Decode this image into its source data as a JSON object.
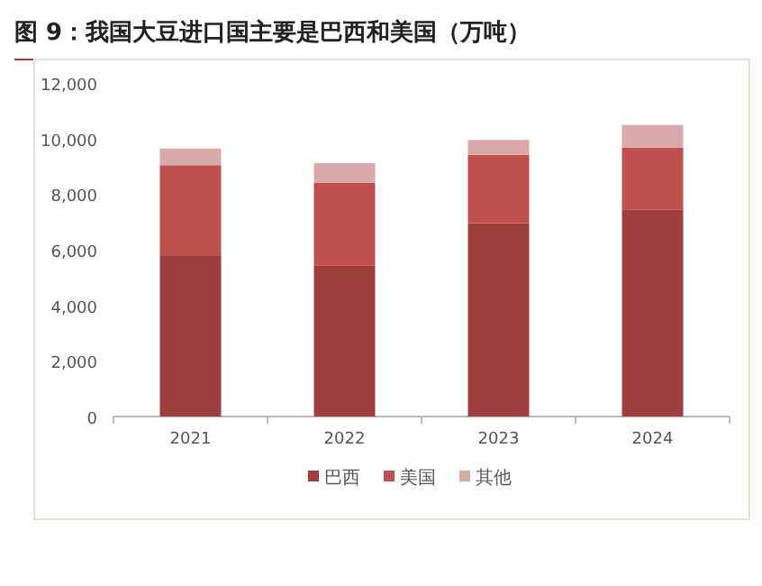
{
  "chart_data": {
    "type": "bar",
    "stacked": true,
    "title": "图 9：我国大豆进口国主要是巴西和美国（万吨）",
    "categories": [
      "2021",
      "2022",
      "2023",
      "2024"
    ],
    "series": [
      {
        "name": "巴西",
        "color": "#9e3f3f",
        "values": [
          5800,
          5420,
          6950,
          7450
        ]
      },
      {
        "name": "美国",
        "color": "#c0504d",
        "values": [
          3240,
          2980,
          2460,
          2220
        ]
      },
      {
        "name": "其他",
        "color": "#d9a9a9",
        "values": [
          600,
          710,
          540,
          820
        ]
      }
    ],
    "ylim": [
      0,
      12000
    ],
    "yticks": [
      {
        "value": 0,
        "label": "0"
      },
      {
        "value": 2000,
        "label": "2,000"
      },
      {
        "value": 4000,
        "label": "4,000"
      },
      {
        "value": 6000,
        "label": "6,000"
      },
      {
        "value": 8000,
        "label": "8,000"
      },
      {
        "value": 10000,
        "label": "10,000"
      },
      {
        "value": 12000,
        "label": "12,000"
      }
    ],
    "grid": false,
    "legend": "bottom"
  }
}
